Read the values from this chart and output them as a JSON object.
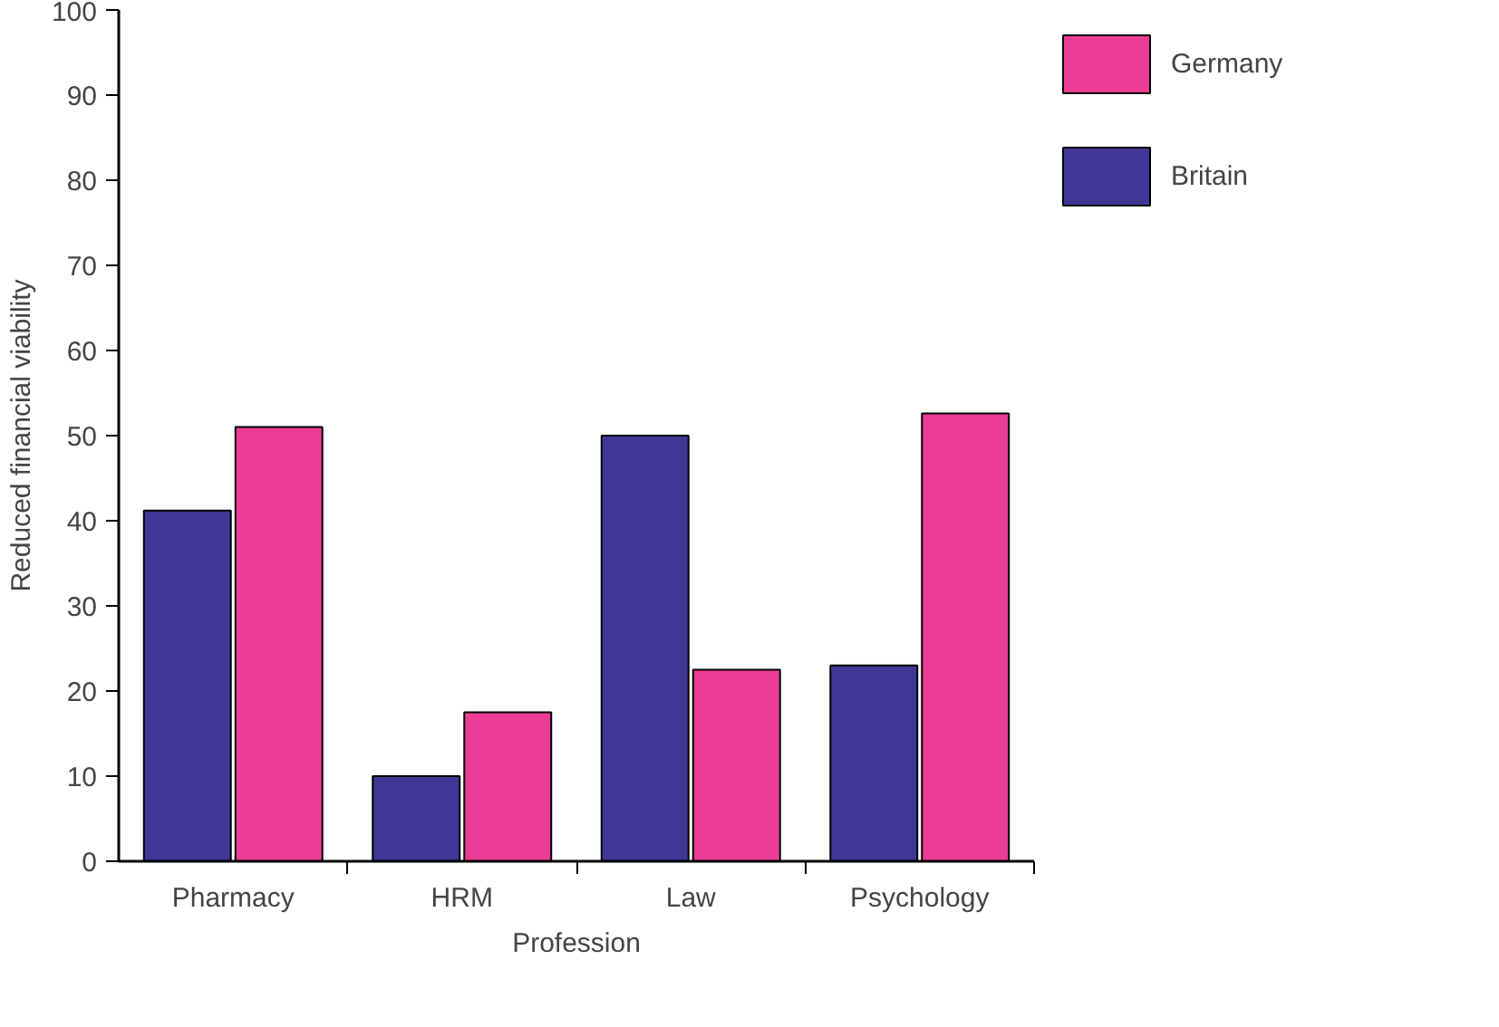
{
  "chart_data": {
    "type": "bar",
    "xlabel": "Profession",
    "ylabel": "Reduced financial viability",
    "categories": [
      "Pharmacy",
      "HRM",
      "Law",
      "Psychology"
    ],
    "series": [
      {
        "name": "Britain",
        "color": "#3f3695",
        "values": [
          41.2,
          10,
          50,
          23
        ]
      },
      {
        "name": "Germany",
        "color": "#ec3c96",
        "values": [
          51,
          17.5,
          22.5,
          52.6
        ]
      }
    ],
    "ylim": [
      0,
      100
    ],
    "yticks": [
      0,
      10,
      20,
      30,
      40,
      50,
      60,
      70,
      80,
      90,
      100
    ],
    "grid": false,
    "legend": "top right"
  }
}
